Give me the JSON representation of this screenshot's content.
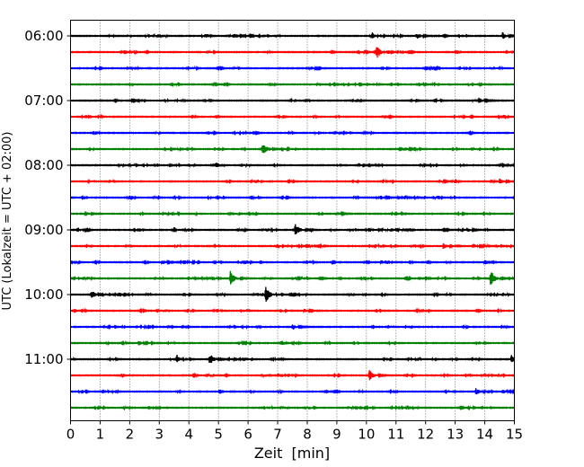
{
  "chart_data": {
    "type": "line",
    "title": "",
    "xlabel": "Zeit  [min]",
    "ylabel": "UTC (Lokalzeit = UTC + 02:00)",
    "xlim": [
      0,
      15
    ],
    "x_ticks": [
      0,
      1,
      2,
      3,
      4,
      5,
      6,
      7,
      8,
      9,
      10,
      11,
      12,
      13,
      14,
      15
    ],
    "x_tick_labels": [
      "0",
      "1",
      "2",
      "3",
      "4",
      "5",
      "6",
      "7",
      "8",
      "9",
      "10",
      "11",
      "12",
      "13",
      "14",
      "15"
    ],
    "y_tick_labels": [
      "06:00",
      "07:00",
      "08:00",
      "09:00",
      "10:00",
      "11:00"
    ],
    "y_tick_rows": [
      0,
      4,
      8,
      12,
      16,
      20
    ],
    "grid": "vertical dotted",
    "trace_colors": [
      "#000000",
      "#ff0000",
      "#0000ff",
      "#008000"
    ],
    "series": [
      {
        "start": "06:00",
        "color": "#000000",
        "events": [
          {
            "x": 10.2,
            "amp": 0.2
          },
          {
            "x": 11.7,
            "amp": 0.3
          },
          {
            "x": 14.6,
            "amp": 0.3
          }
        ]
      },
      {
        "start": "06:15",
        "color": "#ff0000",
        "events": [
          {
            "x": 10.35,
            "amp": 0.45
          }
        ]
      },
      {
        "start": "06:30",
        "color": "#0000ff",
        "events": []
      },
      {
        "start": "06:45",
        "color": "#008000",
        "events": []
      },
      {
        "start": "07:00",
        "color": "#000000",
        "events": [
          {
            "x": 13.8,
            "amp": 0.25
          }
        ]
      },
      {
        "start": "07:15",
        "color": "#ff0000",
        "events": []
      },
      {
        "start": "07:30",
        "color": "#0000ff",
        "events": []
      },
      {
        "start": "07:45",
        "color": "#008000",
        "events": [
          {
            "x": 6.5,
            "amp": 0.45
          },
          {
            "x": 11.3,
            "amp": 0.15
          }
        ]
      },
      {
        "start": "08:00",
        "color": "#000000",
        "events": []
      },
      {
        "start": "08:15",
        "color": "#ff0000",
        "events": [
          {
            "x": 14.5,
            "amp": 0.25
          }
        ]
      },
      {
        "start": "08:30",
        "color": "#0000ff",
        "events": [
          {
            "x": 10.5,
            "amp": 0.15
          },
          {
            "x": 15.0,
            "amp": 0.2
          }
        ]
      },
      {
        "start": "08:45",
        "color": "#008000",
        "events": [
          {
            "x": 0.5,
            "amp": 0.2
          },
          {
            "x": 9.0,
            "amp": 0.15
          },
          {
            "x": 11.0,
            "amp": 0.15
          }
        ]
      },
      {
        "start": "09:00",
        "color": "#000000",
        "events": [
          {
            "x": 7.6,
            "amp": 0.55
          },
          {
            "x": 13.4,
            "amp": 0.2
          }
        ]
      },
      {
        "start": "09:15",
        "color": "#ff0000",
        "events": [
          {
            "x": 12.6,
            "amp": 0.25
          },
          {
            "x": 13.6,
            "amp": 0.25
          }
        ]
      },
      {
        "start": "09:30",
        "color": "#0000ff",
        "events": [
          {
            "x": 3.1,
            "amp": 0.2
          },
          {
            "x": 10.5,
            "amp": 0.2
          },
          {
            "x": 14.0,
            "amp": 0.2
          }
        ]
      },
      {
        "start": "09:45",
        "color": "#008000",
        "events": [
          {
            "x": 5.4,
            "amp": 0.65
          },
          {
            "x": 14.2,
            "amp": 0.7
          }
        ]
      },
      {
        "start": "10:00",
        "color": "#000000",
        "events": [
          {
            "x": 0.7,
            "amp": 0.25
          },
          {
            "x": 6.6,
            "amp": 0.7
          }
        ]
      },
      {
        "start": "10:15",
        "color": "#ff0000",
        "events": [
          {
            "x": 7.9,
            "amp": 0.15
          }
        ]
      },
      {
        "start": "10:30",
        "color": "#0000ff",
        "events": [
          {
            "x": 7.5,
            "amp": 0.25
          }
        ]
      },
      {
        "start": "10:45",
        "color": "#008000",
        "events": [
          {
            "x": 2.3,
            "amp": 0.2
          }
        ]
      },
      {
        "start": "11:00",
        "color": "#000000",
        "events": [
          {
            "x": 4.7,
            "amp": 0.45
          },
          {
            "x": 3.6,
            "amp": 0.3
          },
          {
            "x": 14.9,
            "amp": 0.35
          }
        ]
      },
      {
        "start": "11:15",
        "color": "#ff0000",
        "events": [
          {
            "x": 10.1,
            "amp": 0.5
          }
        ]
      },
      {
        "start": "11:30",
        "color": "#0000ff",
        "events": [
          {
            "x": 13.7,
            "amp": 0.3
          },
          {
            "x": 14.6,
            "amp": 0.2
          }
        ]
      },
      {
        "start": "11:45",
        "color": "#008000",
        "events": []
      }
    ]
  }
}
